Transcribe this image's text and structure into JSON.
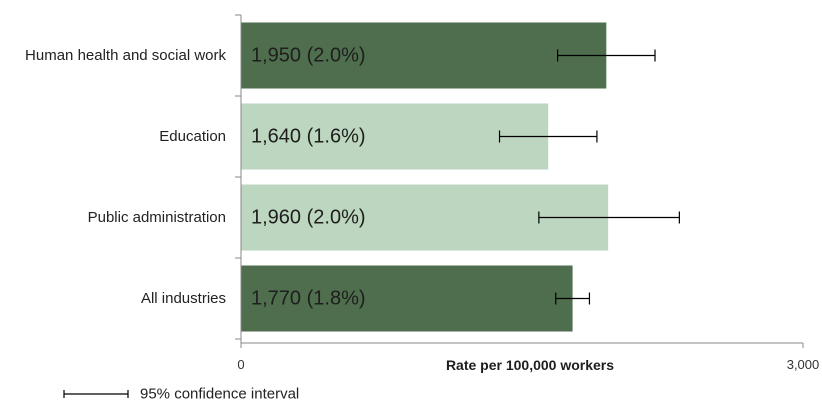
{
  "chart_data": {
    "type": "bar",
    "orientation": "horizontal",
    "categories": [
      "Human health and social work",
      "Education",
      "Public administration",
      "All industries"
    ],
    "values": [
      1950,
      1640,
      1960,
      1770
    ],
    "data_labels": [
      "1,950 (2.0%)",
      "1,640 (1.6%)",
      "1,960 (2.0%)",
      "1,770 (1.8%)"
    ],
    "ci_low": [
      1690,
      1380,
      1590,
      1680
    ],
    "ci_high": [
      2210,
      1900,
      2340,
      1860
    ],
    "bar_colors": [
      "#4e6e4d",
      "#bdd6bf",
      "#bdd6bf",
      "#4e6e4d"
    ],
    "error_bar_color": "#000000",
    "axis_color": "#888888",
    "xlabel": "Rate per 100,000  workers",
    "xlim": [
      0,
      3000
    ],
    "xtick_labels": [
      "0",
      "3,000"
    ],
    "grid": false,
    "legend": {
      "label": "95% confidence interval",
      "placement": "bottom-left"
    }
  }
}
